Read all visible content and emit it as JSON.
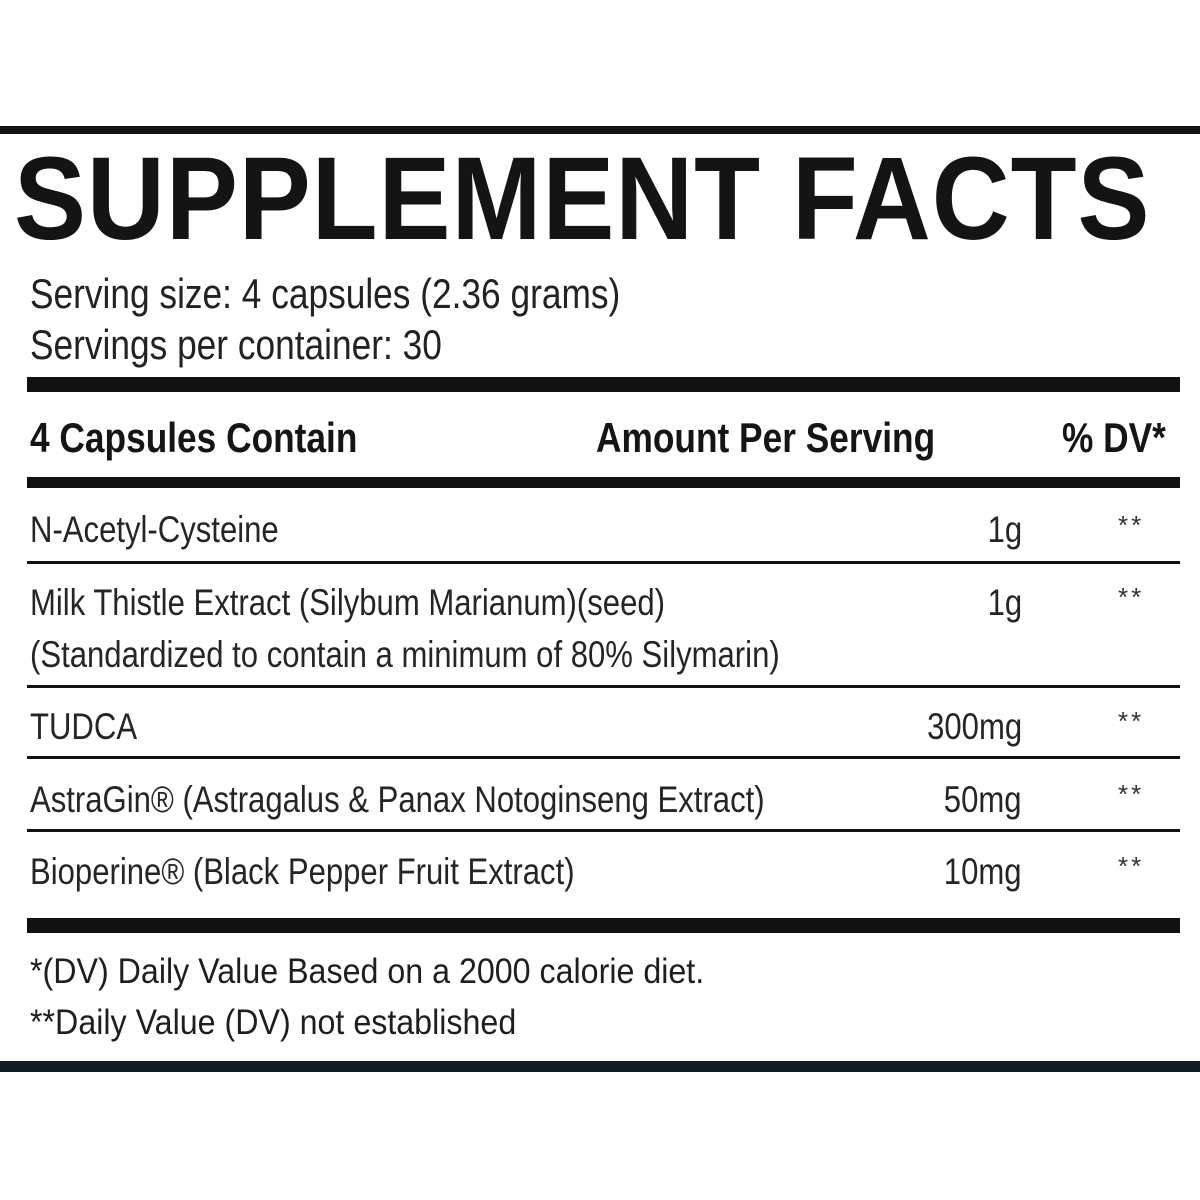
{
  "label": {
    "title": "SUPPLEMENT FACTS",
    "serving_size": "Serving size: 4 capsules (2.36 grams)",
    "servings_per_container": "Servings per container: 30",
    "header": {
      "col_ingredient": "4 Capsules Contain",
      "col_amount": "Amount Per Serving",
      "col_dv": "% DV*"
    },
    "rows": [
      {
        "name": "N-Acetyl-Cysteine",
        "amount": "1g",
        "dv": "**"
      },
      {
        "name": "Milk Thistle Extract (Silybum Marianum)(seed)",
        "note": "(Standardized to contain a minimum of 80% Silymarin)",
        "amount": "1g",
        "dv": "**"
      },
      {
        "name": "TUDCA",
        "amount": "300mg",
        "dv": "**"
      },
      {
        "name": "AstraGin® (Astragalus & Panax Notoginseng Extract)",
        "amount": "50mg",
        "dv": "**"
      },
      {
        "name": "Bioperine® (Black Pepper Fruit Extract)",
        "amount": "10mg",
        "dv": "**"
      }
    ],
    "footnotes": [
      "*(DV) Daily Value Based on a 2000 calorie diet.",
      "**Daily Value (DV) not established"
    ],
    "colors": {
      "text": "#1a1a1a",
      "rule": "#111111",
      "bottom_border": "#0f1a22",
      "background": "#ffffff"
    }
  }
}
